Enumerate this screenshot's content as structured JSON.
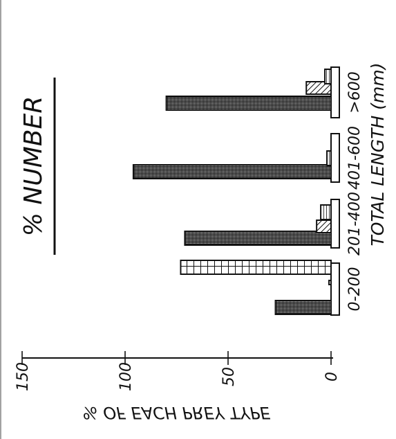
{
  "chart_data": {
    "type": "bar",
    "orientation": "horizontal",
    "rotated": "page turned a quarter turn clockwise",
    "title": "% NUMBER",
    "xlabel": "TOTAL LENGTH (mm)",
    "ylabel": "% OF EACH PREY TYPE",
    "ylim": [
      0,
      150
    ],
    "yticks": [
      0,
      50,
      100,
      150
    ],
    "categories": [
      "0-200",
      "201-400",
      "401-600",
      ">600"
    ],
    "series": [
      {
        "pattern": "dense-crosshatch",
        "values": [
          27,
          71,
          96,
          80
        ]
      },
      {
        "pattern": "open-grid",
        "values": [
          73,
          0,
          0,
          0
        ]
      },
      {
        "pattern": "diagonal-hatch",
        "values": [
          0,
          7,
          0,
          12
        ]
      },
      {
        "pattern": "horizontal-lines",
        "values": [
          0,
          5,
          2,
          3
        ]
      },
      {
        "pattern": "plain",
        "values": [
          1,
          0,
          0,
          0
        ]
      }
    ],
    "grid": false,
    "legend": "none"
  },
  "colors": {
    "ink": "#111111",
    "paper": "#ffffff"
  }
}
